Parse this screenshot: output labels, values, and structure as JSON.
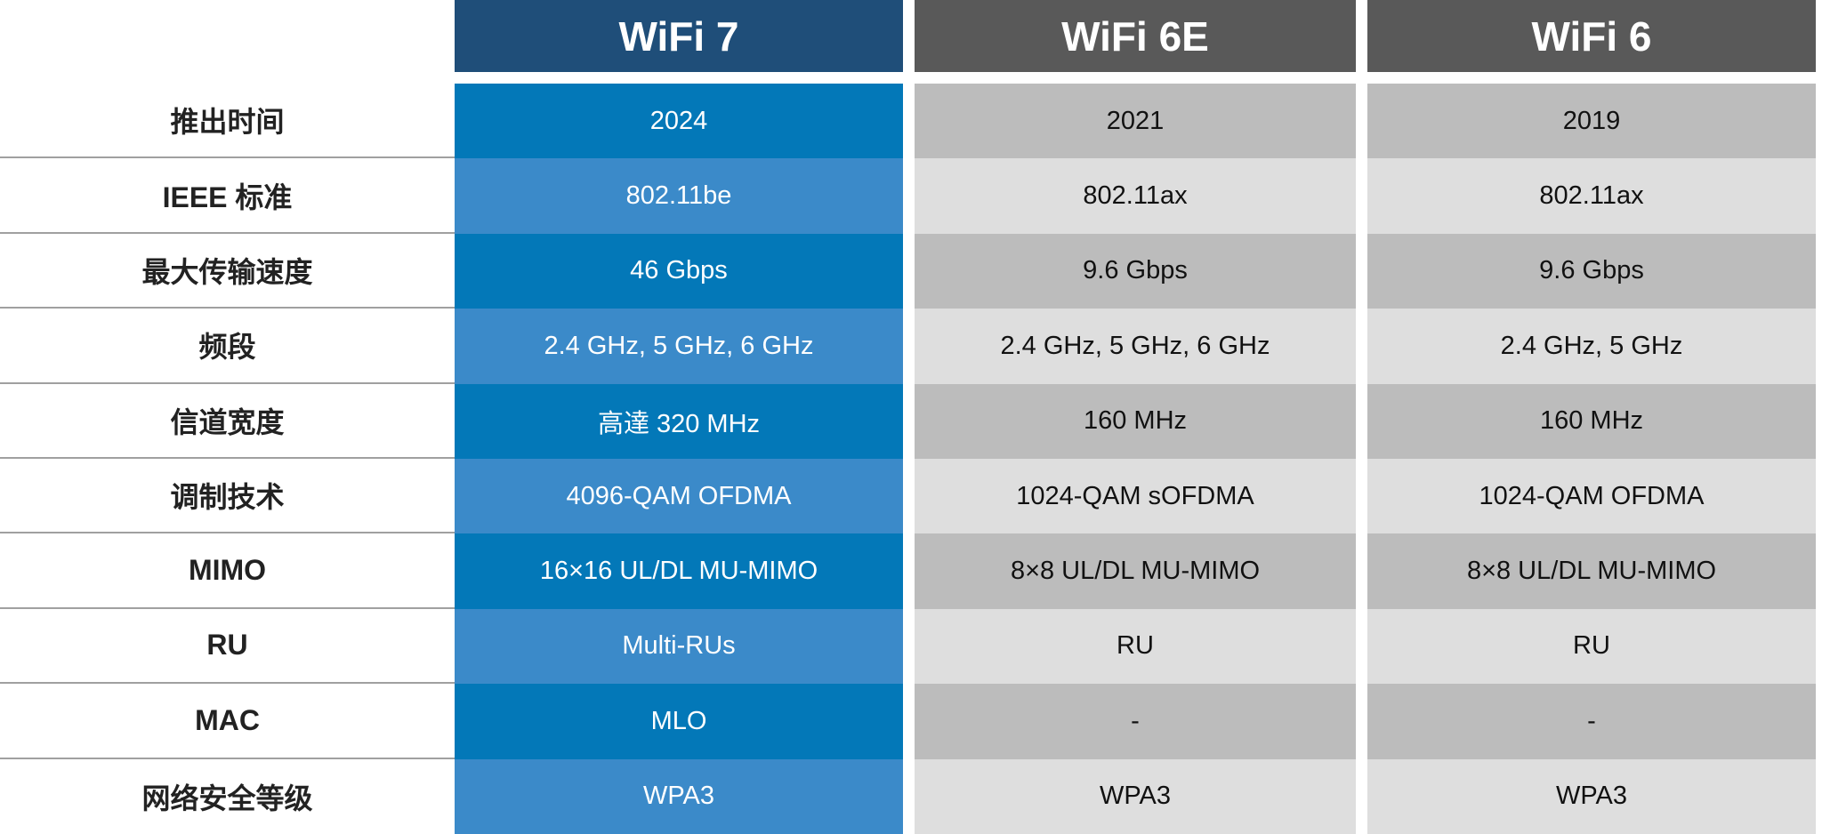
{
  "headers": [
    "WiFi 7",
    "WiFi 6E",
    "WiFi 6"
  ],
  "colors": {
    "wifi7_header": "#1f4e79",
    "other_header": "#595959",
    "wifi7_dark": "#0378b8",
    "wifi7_light": "#3b8ac9",
    "gray_dark": "#bcbcbc",
    "gray_light": "#dedede"
  },
  "labels": [
    "推出时间",
    "IEEE 标准",
    "最大传输速度",
    "频段",
    "信道宽度",
    "调制技术",
    "MIMO",
    "RU",
    "MAC",
    "网络安全等级"
  ],
  "wifi7": [
    "2024",
    "802.11be",
    "46 Gbps",
    "2.4 GHz, 5 GHz, 6 GHz",
    "高達 320 MHz",
    "4096-QAM OFDMA",
    "16×16 UL/DL MU-MIMO",
    "Multi-RUs",
    "MLO",
    "WPA3"
  ],
  "wifi6e": [
    "2021",
    "802.11ax",
    "9.6 Gbps",
    "2.4 GHz, 5 GHz, 6 GHz",
    "160 MHz",
    "1024-QAM sOFDMA",
    "8×8 UL/DL MU-MIMO",
    "RU",
    "-",
    "WPA3"
  ],
  "wifi6": [
    "2019",
    "802.11ax",
    "9.6 Gbps",
    "2.4 GHz, 5 GHz",
    "160 MHz",
    "1024-QAM OFDMA",
    "8×8 UL/DL MU-MIMO",
    "RU",
    "-",
    "WPA3"
  ]
}
